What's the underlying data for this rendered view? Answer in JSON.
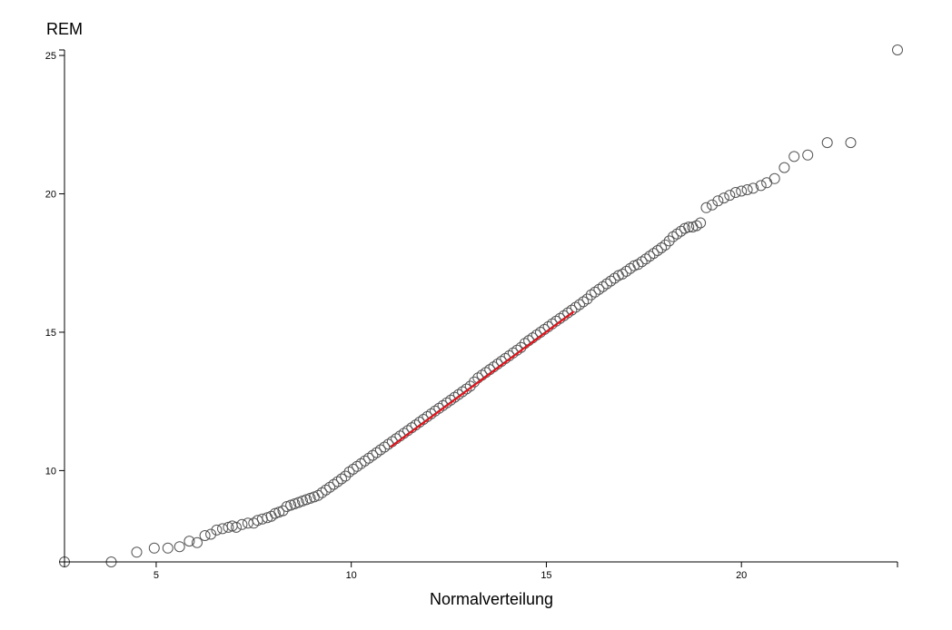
{
  "chart_data": {
    "type": "scatter",
    "title": "",
    "xlabel": "Normalverteilung",
    "ylabel": "REM",
    "xlim": [
      2.65,
      24.0
    ],
    "ylim": [
      6.7,
      25.2
    ],
    "x_ticks": [
      5,
      10,
      15,
      20
    ],
    "y_ticks": [
      10,
      15,
      20,
      25
    ],
    "grid": false,
    "legend": "none",
    "colors": {
      "points": "#555555",
      "reference_line": "#e0141b"
    },
    "reference_line": {
      "x": [
        11.0,
        15.7
      ],
      "y": [
        10.85,
        15.75
      ]
    },
    "points": {
      "x": [
        2.65,
        3.85,
        4.5,
        4.95,
        5.3,
        5.6,
        5.85,
        6.05,
        6.25,
        6.4,
        6.55,
        6.7,
        6.85,
        6.95,
        7.05,
        7.2,
        7.35,
        7.5,
        7.6,
        7.72,
        7.85,
        7.95,
        8.05,
        8.15,
        8.25,
        8.35,
        8.45,
        8.55,
        8.65,
        8.75,
        8.85,
        8.95,
        9.05,
        9.15,
        9.25,
        9.35,
        9.45,
        9.55,
        9.65,
        9.75,
        9.85,
        9.95,
        10.05,
        10.15,
        10.25,
        10.35,
        10.45,
        10.55,
        10.65,
        10.75,
        10.85,
        10.95,
        11.05,
        11.15,
        11.25,
        11.35,
        11.45,
        11.55,
        11.65,
        11.75,
        11.85,
        11.95,
        12.05,
        12.15,
        12.25,
        12.35,
        12.45,
        12.55,
        12.65,
        12.75,
        12.85,
        12.95,
        13.05,
        13.15,
        13.25,
        13.35,
        13.45,
        13.55,
        13.65,
        13.75,
        13.85,
        13.95,
        14.05,
        14.15,
        14.25,
        14.35,
        14.45,
        14.55,
        14.65,
        14.75,
        14.85,
        14.95,
        15.05,
        15.15,
        15.25,
        15.35,
        15.45,
        15.55,
        15.65,
        15.75,
        15.85,
        15.95,
        16.05,
        16.15,
        16.25,
        16.35,
        16.45,
        16.55,
        16.65,
        16.75,
        16.85,
        16.95,
        17.05,
        17.15,
        17.25,
        17.35,
        17.45,
        17.55,
        17.65,
        17.75,
        17.85,
        17.95,
        18.05,
        18.15,
        18.25,
        18.35,
        18.45,
        18.55,
        18.65,
        18.75,
        18.85,
        18.95,
        19.1,
        19.25,
        19.4,
        19.55,
        19.7,
        19.85,
        20.0,
        20.15,
        20.3,
        20.5,
        20.65,
        20.85,
        21.1,
        21.35,
        21.7,
        22.2,
        22.8,
        24.0
      ],
      "y": [
        6.7,
        6.7,
        7.05,
        7.2,
        7.2,
        7.25,
        7.45,
        7.4,
        7.65,
        7.7,
        7.85,
        7.9,
        7.95,
        8.0,
        7.95,
        8.05,
        8.1,
        8.1,
        8.2,
        8.25,
        8.3,
        8.35,
        8.45,
        8.5,
        8.55,
        8.7,
        8.75,
        8.8,
        8.85,
        8.9,
        8.95,
        9.0,
        9.05,
        9.1,
        9.2,
        9.3,
        9.4,
        9.5,
        9.6,
        9.7,
        9.8,
        9.95,
        10.05,
        10.15,
        10.25,
        10.35,
        10.45,
        10.55,
        10.65,
        10.75,
        10.85,
        10.95,
        11.05,
        11.15,
        11.25,
        11.35,
        11.45,
        11.55,
        11.65,
        11.75,
        11.85,
        11.95,
        12.05,
        12.15,
        12.25,
        12.35,
        12.45,
        12.55,
        12.65,
        12.75,
        12.85,
        12.95,
        13.05,
        13.2,
        13.35,
        13.45,
        13.55,
        13.65,
        13.75,
        13.85,
        13.95,
        14.05,
        14.15,
        14.25,
        14.35,
        14.45,
        14.6,
        14.7,
        14.8,
        14.9,
        15.0,
        15.1,
        15.2,
        15.3,
        15.4,
        15.5,
        15.6,
        15.7,
        15.8,
        15.9,
        16.0,
        16.1,
        16.2,
        16.35,
        16.45,
        16.55,
        16.65,
        16.75,
        16.85,
        16.95,
        17.05,
        17.1,
        17.2,
        17.3,
        17.4,
        17.45,
        17.55,
        17.65,
        17.75,
        17.85,
        17.95,
        18.05,
        18.15,
        18.3,
        18.45,
        18.55,
        18.65,
        18.75,
        18.8,
        18.8,
        18.85,
        18.95,
        19.5,
        19.6,
        19.75,
        19.85,
        19.95,
        20.05,
        20.1,
        20.15,
        20.2,
        20.3,
        20.4,
        20.55,
        20.95,
        21.35,
        21.4,
        21.85,
        21.85,
        25.2
      ]
    }
  }
}
